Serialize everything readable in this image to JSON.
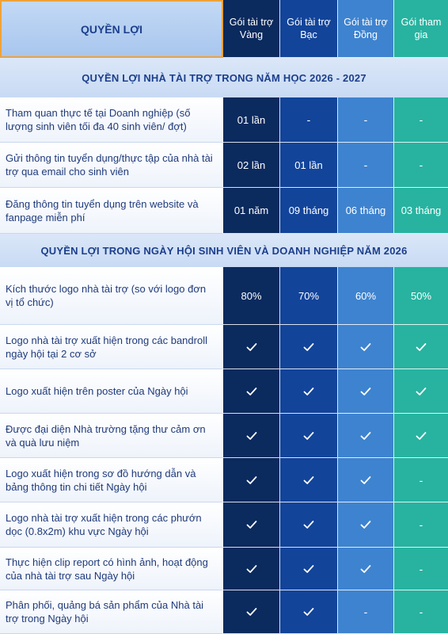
{
  "header": {
    "title": "QUYỀN LỢI",
    "packages": [
      "Gói tài trợ Vàng",
      "Gói tài trợ Bạc",
      "Gói tài trợ Đồng",
      "Gói tham gia"
    ]
  },
  "sections": [
    {
      "title": "QUYỀN LỢI NHÀ TÀI TRỢ TRONG NĂM HỌC 2026 - 2027",
      "rows": [
        {
          "label": "Tham quan thực tế tại Doanh nghiệp (số lượng sinh viên tối đa 40 sinh viên/ đợt)",
          "values": [
            "01 lần",
            "-",
            "-",
            "-"
          ]
        },
        {
          "label": "Gửi thông tin tuyển dụng/thực tập của nhà tài trợ qua email cho sinh viên",
          "values": [
            "02 lần",
            "01 lần",
            "-",
            "-"
          ]
        },
        {
          "label": "Đăng thông tin tuyển dụng trên website và fanpage miễn phí",
          "values": [
            "01 năm",
            "09 tháng",
            "06 tháng",
            "03 tháng"
          ]
        }
      ]
    },
    {
      "title": "QUYỀN LỢI TRONG NGÀY HỘI SINH VIÊN VÀ DOANH NGHIỆP NĂM 2026",
      "rows": [
        {
          "label": "Kích thước logo nhà tài trợ (so với logo đơn vị tổ chức)",
          "values": [
            "80%",
            "70%",
            "60%",
            "50%"
          ]
        },
        {
          "label": "Logo nhà tài trợ xuất hiện trong các bandroll ngày hội tại 2 cơ sở",
          "values": [
            "check",
            "check",
            "check",
            "check"
          ]
        },
        {
          "label": "Logo xuất hiện trên poster của Ngày hội",
          "values": [
            "check",
            "check",
            "check",
            "check"
          ]
        },
        {
          "label": "Được đại diện Nhà trường tặng thư cảm ơn và quà lưu niệm",
          "values": [
            "check",
            "check",
            "check",
            "check"
          ]
        },
        {
          "label": "Logo xuất hiện trong sơ đồ hướng dẫn và bảng thông tin chi tiết Ngày hội",
          "values": [
            "check",
            "check",
            "check",
            "-"
          ]
        },
        {
          "label": "Logo nhà tài trợ xuất hiện trong các phướn dọc (0.8x2m) khu vực Ngày hội",
          "values": [
            "check",
            "check",
            "check",
            "-"
          ]
        },
        {
          "label": "Thực hiện clip report có hình ảnh, hoạt động của nhà tài trợ sau Ngày hội",
          "values": [
            "check",
            "check",
            "check",
            "-"
          ]
        },
        {
          "label": "Phân phối, quảng bá sản phẩm của Nhà tài trợ trong Ngày hội",
          "values": [
            "check",
            "check",
            "-",
            "-"
          ]
        }
      ]
    }
  ],
  "icons": {
    "check": "check-icon"
  },
  "colors": {
    "gold": "#0b2a5e",
    "silver": "#12449a",
    "bronze": "#3e83cf",
    "participant": "#27b3a0",
    "header_border": "#f0a23a",
    "text": "#1f3a7a"
  }
}
